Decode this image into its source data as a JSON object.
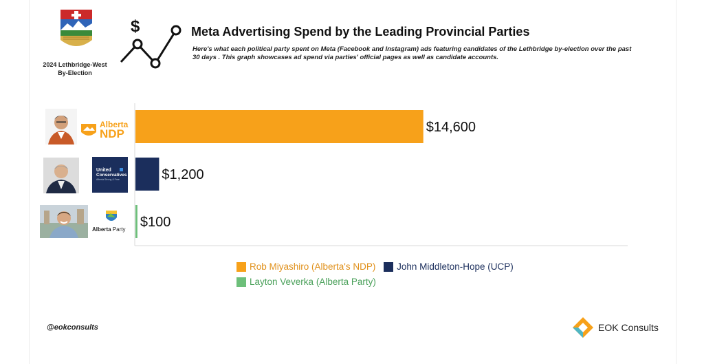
{
  "header": {
    "title": "Meta Advertising Spend by the Leading Provincial Parties",
    "subtitle": "Here's what each political party spent on Meta (Facebook and Instagram) ads featuring candidates of the Lethbridge by-election over the past 30 days . This graph showcases ad spend via parties' official pages as well as candidate accounts.",
    "event_line1": "2024 Lethbridge-West",
    "event_line2": "By-Election",
    "dollar_sign": "$"
  },
  "colors": {
    "ndp": "#F7A11A",
    "ucp": "#1B2E5C",
    "ap": "#6DBF7A",
    "axis": "#d8d8d8"
  },
  "parties": {
    "ndp_logo_line1": "Alberta",
    "ndp_logo_line2": "NDP",
    "ucp_logo_line1": "United",
    "ucp_logo_line2": "Conservatives",
    "ucp_logo_line3": "Alberta Strong & Free",
    "ap_logo_bold": "Alberta",
    "ap_logo_light": "Party"
  },
  "chart_data": {
    "type": "bar",
    "orientation": "horizontal",
    "title": "Meta Advertising Spend by the Leading Provincial Parties",
    "categories": [
      "Rob Miyashiro (Alberta's NDP)",
      "John Middleton-Hope (UCP)",
      "Layton Veverka (Alberta Party)"
    ],
    "values": [
      14600,
      1200,
      100
    ],
    "data_labels": [
      "$14,600",
      "$1,200",
      "$100"
    ],
    "xlim": [
      0,
      25000
    ],
    "grid": false,
    "legend_position": "bottom"
  },
  "legend": {
    "items": [
      {
        "label": "Rob Miyashiro (Alberta's NDP)"
      },
      {
        "label": "John Middleton-Hope (UCP)"
      },
      {
        "label": "Layton Veverka (Alberta Party)"
      }
    ]
  },
  "footer": {
    "handle": "@eokconsults",
    "brand": "EOK Consults"
  }
}
